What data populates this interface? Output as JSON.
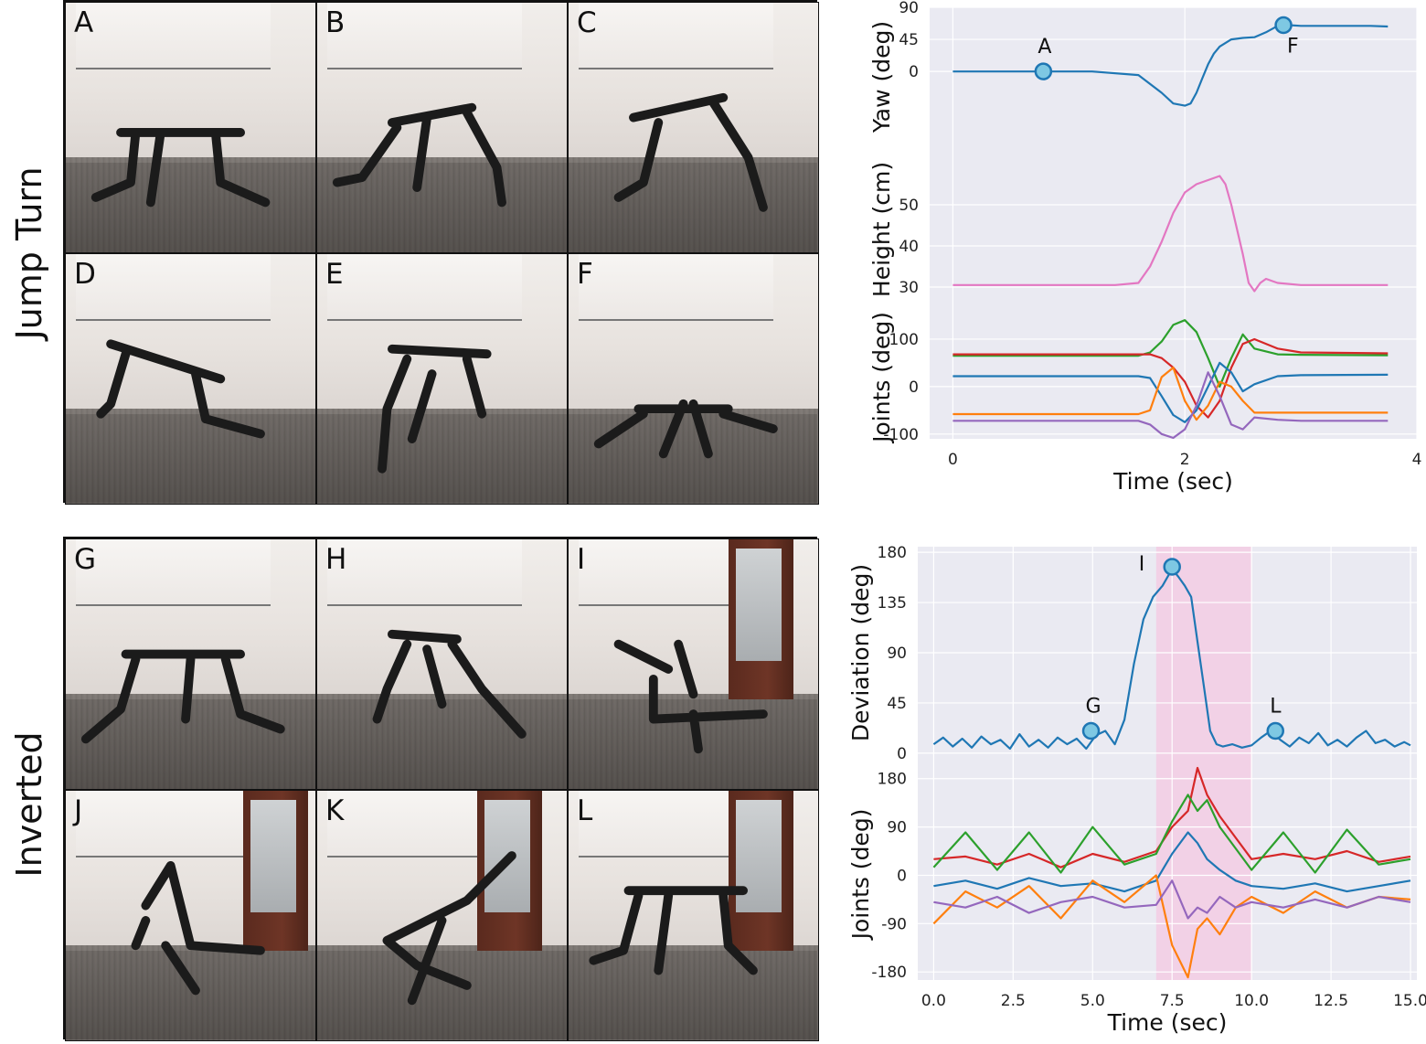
{
  "row_labels": {
    "top": "Jump Turn",
    "bottom": "Inverted"
  },
  "panels_top": [
    "A",
    "B",
    "C",
    "D",
    "E",
    "F"
  ],
  "panels_bottom": [
    "G",
    "H",
    "I",
    "J",
    "K",
    "L"
  ],
  "colors": {
    "blue": "#1f77b4",
    "orange": "#ff7f0e",
    "green": "#2ca02c",
    "red": "#d62728",
    "purple": "#9467bd",
    "pink": "#e377c2",
    "shade": "#f4c8e2",
    "plot_bg": "#eaeaf2",
    "marker": "#7ec8e3",
    "arrow_blue": "#2a7fc4",
    "arrow_green": "#6fb88f",
    "arrow_pink": "#ee7a93",
    "dot_red": "#e8261f"
  },
  "chart_data": [
    {
      "type": "line",
      "xlabel": "Time (sec)",
      "xlim": [
        -0.2,
        4.0
      ],
      "xticks": [
        "0",
        "2",
        "4"
      ],
      "panels": [
        {
          "ylabel": "Yaw (deg)",
          "ylim": [
            -105,
            90
          ],
          "yticks": [
            "0",
            "45",
            "90"
          ],
          "series": [
            {
              "color": "blue",
              "x": [
                0,
                0.4,
                0.8,
                1.2,
                1.6,
                1.8,
                1.9,
                2.0,
                2.05,
                2.1,
                2.15,
                2.2,
                2.25,
                2.3,
                2.4,
                2.5,
                2.6,
                2.7,
                2.8,
                2.9,
                3.0,
                3.2,
                3.4,
                3.6,
                3.75
              ],
              "values": [
                0,
                0,
                0,
                0,
                -5,
                -30,
                -45,
                -48,
                -45,
                -30,
                -10,
                10,
                25,
                35,
                45,
                47,
                48,
                55,
                64,
                65,
                64,
                64,
                64,
                64,
                63
              ]
            }
          ],
          "markers": [
            {
              "label": "A",
              "x": 0.78,
              "y": 0
            },
            {
              "label": "F",
              "x": 2.85,
              "y": 65
            }
          ]
        },
        {
          "ylabel": "Height (cm)",
          "ylim": [
            26,
            62
          ],
          "yticks": [
            "30",
            "40",
            "50"
          ],
          "series": [
            {
              "color": "pink",
              "x": [
                0,
                0.5,
                1.0,
                1.4,
                1.6,
                1.7,
                1.8,
                1.9,
                2.0,
                2.1,
                2.2,
                2.3,
                2.35,
                2.4,
                2.5,
                2.55,
                2.6,
                2.65,
                2.7,
                2.8,
                3.0,
                3.5,
                3.75
              ],
              "values": [
                30.5,
                30.5,
                30.5,
                30.5,
                31,
                35,
                41,
                48,
                53,
                55,
                56,
                57,
                55,
                50,
                38,
                31,
                29,
                31,
                32,
                31,
                30.5,
                30.5,
                30.5
              ]
            }
          ]
        },
        {
          "ylabel": "Joints (deg)",
          "ylim": [
            -110,
            150
          ],
          "yticks": [
            "-100",
            "0",
            "100"
          ],
          "series": [
            {
              "color": "green",
              "x": [
                0,
                1.6,
                1.7,
                1.8,
                1.9,
                2.0,
                2.1,
                2.2,
                2.3,
                2.4,
                2.5,
                2.6,
                2.8,
                3.0,
                3.75
              ],
              "values": [
                65,
                65,
                72,
                95,
                130,
                140,
                115,
                60,
                0,
                60,
                110,
                80,
                68,
                67,
                66
              ]
            },
            {
              "color": "red",
              "x": [
                0,
                1.6,
                1.7,
                1.8,
                1.9,
                2.0,
                2.1,
                2.2,
                2.3,
                2.4,
                2.5,
                2.6,
                2.8,
                3.0,
                3.75
              ],
              "values": [
                68,
                68,
                68,
                60,
                40,
                10,
                -40,
                -65,
                -30,
                40,
                90,
                100,
                80,
                72,
                70
              ]
            },
            {
              "color": "blue",
              "x": [
                0,
                1.6,
                1.7,
                1.8,
                1.9,
                2.0,
                2.1,
                2.2,
                2.3,
                2.4,
                2.5,
                2.6,
                2.8,
                3.0,
                3.75
              ],
              "values": [
                22,
                22,
                18,
                -20,
                -60,
                -75,
                -50,
                0,
                50,
                30,
                -10,
                5,
                22,
                24,
                25
              ]
            },
            {
              "color": "orange",
              "x": [
                0,
                1.6,
                1.7,
                1.8,
                1.9,
                2.0,
                2.1,
                2.2,
                2.3,
                2.4,
                2.5,
                2.6,
                2.8,
                3.0,
                3.75
              ],
              "values": [
                -58,
                -58,
                -50,
                20,
                40,
                -30,
                -70,
                -40,
                10,
                0,
                -30,
                -55,
                -55,
                -55,
                -55
              ]
            },
            {
              "color": "purple",
              "x": [
                0,
                1.6,
                1.7,
                1.8,
                1.9,
                2.0,
                2.1,
                2.2,
                2.3,
                2.4,
                2.5,
                2.6,
                2.8,
                3.0,
                3.75
              ],
              "values": [
                -72,
                -72,
                -80,
                -100,
                -108,
                -90,
                -40,
                30,
                -20,
                -80,
                -90,
                -65,
                -70,
                -72,
                -72
              ]
            }
          ]
        }
      ]
    },
    {
      "type": "line",
      "xlabel": "Time (sec)",
      "xlim": [
        -0.5,
        15.2
      ],
      "xticks": [
        "0.0",
        "2.5",
        "5.0",
        "7.5",
        "10.0",
        "12.5",
        "15.0"
      ],
      "shaded_region": [
        7.0,
        10.0
      ],
      "panels": [
        {
          "ylabel": "Deviation (deg)",
          "ylim": [
            -5,
            185
          ],
          "yticks": [
            "0",
            "45",
            "90",
            "135",
            "180"
          ],
          "series": [
            {
              "color": "blue",
              "x": [
                0,
                0.3,
                0.6,
                0.9,
                1.2,
                1.5,
                1.8,
                2.1,
                2.4,
                2.7,
                3.0,
                3.3,
                3.6,
                3.9,
                4.2,
                4.5,
                4.8,
                5.1,
                5.4,
                5.7,
                6.0,
                6.3,
                6.6,
                6.9,
                7.2,
                7.5,
                7.7,
                7.9,
                8.1,
                8.3,
                8.5,
                8.7,
                8.9,
                9.1,
                9.4,
                9.7,
                10.0,
                10.3,
                10.6,
                10.9,
                11.2,
                11.5,
                11.8,
                12.1,
                12.4,
                12.7,
                13.0,
                13.3,
                13.6,
                13.9,
                14.2,
                14.5,
                14.8,
                15.0
              ],
              "values": [
                8,
                14,
                6,
                13,
                5,
                15,
                8,
                12,
                4,
                17,
                6,
                12,
                5,
                14,
                8,
                13,
                4,
                16,
                20,
                8,
                30,
                80,
                120,
                140,
                150,
                165,
                158,
                150,
                140,
                100,
                60,
                20,
                8,
                6,
                8,
                5,
                7,
                14,
                20,
                12,
                6,
                14,
                9,
                18,
                7,
                12,
                6,
                14,
                20,
                9,
                12,
                6,
                10,
                7
              ]
            }
          ],
          "markers": [
            {
              "label": "G",
              "x": 4.95,
              "y": 20
            },
            {
              "label": "I",
              "x": 7.5,
              "y": 167
            },
            {
              "label": "L",
              "x": 10.75,
              "y": 20
            }
          ]
        },
        {
          "ylabel": "Joints (deg)",
          "ylim": [
            -195,
            200
          ],
          "yticks": [
            "-180",
            "-90",
            "0",
            "90",
            "180"
          ],
          "series": [
            {
              "color": "red",
              "x": [
                0,
                1,
                2,
                3,
                4,
                5,
                6,
                7,
                7.5,
                8,
                8.3,
                8.6,
                9,
                9.5,
                10,
                11,
                12,
                13,
                14,
                15
              ],
              "values": [
                30,
                35,
                20,
                40,
                15,
                40,
                25,
                45,
                90,
                120,
                200,
                150,
                110,
                70,
                30,
                40,
                30,
                45,
                25,
                35
              ]
            },
            {
              "color": "green",
              "x": [
                0,
                1,
                2,
                3,
                4,
                5,
                6,
                7,
                7.5,
                8,
                8.3,
                8.6,
                9,
                9.5,
                10,
                11,
                12,
                13,
                14,
                15
              ],
              "values": [
                15,
                80,
                10,
                80,
                5,
                90,
                20,
                40,
                100,
                150,
                120,
                140,
                90,
                50,
                10,
                80,
                5,
                85,
                20,
                30
              ]
            },
            {
              "color": "blue",
              "x": [
                0,
                1,
                2,
                3,
                4,
                5,
                6,
                7,
                7.5,
                8,
                8.3,
                8.6,
                9,
                9.5,
                10,
                11,
                12,
                13,
                14,
                15
              ],
              "values": [
                -20,
                -10,
                -25,
                -5,
                -20,
                -15,
                -30,
                -10,
                40,
                80,
                60,
                30,
                10,
                -10,
                -20,
                -25,
                -15,
                -30,
                -20,
                -10
              ]
            },
            {
              "color": "orange",
              "x": [
                0,
                1,
                2,
                3,
                4,
                5,
                6,
                7,
                7.5,
                8,
                8.3,
                8.6,
                9,
                9.5,
                10,
                11,
                12,
                13,
                14,
                15
              ],
              "values": [
                -90,
                -30,
                -60,
                -20,
                -80,
                -10,
                -50,
                0,
                -130,
                -190,
                -100,
                -80,
                -110,
                -60,
                -40,
                -70,
                -30,
                -60,
                -40,
                -45
              ]
            },
            {
              "color": "purple",
              "x": [
                0,
                1,
                2,
                3,
                4,
                5,
                6,
                7,
                7.5,
                8,
                8.3,
                8.6,
                9,
                9.5,
                10,
                11,
                12,
                13,
                14,
                15
              ],
              "values": [
                -50,
                -60,
                -40,
                -70,
                -50,
                -40,
                -60,
                -55,
                -10,
                -80,
                -60,
                -70,
                -40,
                -60,
                -50,
                -60,
                -45,
                -60,
                -40,
                -50
              ]
            }
          ]
        }
      ]
    }
  ]
}
